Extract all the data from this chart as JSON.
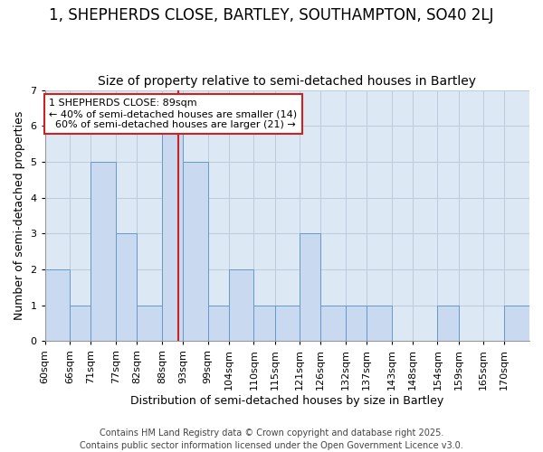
{
  "title": "1, SHEPHERDS CLOSE, BARTLEY, SOUTHAMPTON, SO40 2LJ",
  "subtitle": "Size of property relative to semi-detached houses in Bartley",
  "xlabel": "Distribution of semi-detached houses by size in Bartley",
  "ylabel": "Number of semi-detached properties",
  "bin_labels": [
    "60sqm",
    "66sqm",
    "71sqm",
    "77sqm",
    "82sqm",
    "88sqm",
    "93sqm",
    "99sqm",
    "104sqm",
    "110sqm",
    "115sqm",
    "121sqm",
    "126sqm",
    "132sqm",
    "137sqm",
    "143sqm",
    "148sqm",
    "154sqm",
    "159sqm",
    "165sqm",
    "170sqm"
  ],
  "bin_edges": [
    57,
    63,
    68,
    74,
    79,
    85,
    90,
    96,
    101,
    107,
    112,
    118,
    123,
    129,
    134,
    140,
    145,
    151,
    156,
    162,
    167,
    173
  ],
  "values": [
    2,
    1,
    5,
    3,
    1,
    6,
    5,
    1,
    2,
    1,
    1,
    3,
    1,
    1,
    1,
    0,
    0,
    1,
    0,
    0,
    1
  ],
  "bar_color": "#c9d9f0",
  "bar_edge_color": "#6699cc",
  "property_size": 89,
  "property_label": "1 SHEPHERDS CLOSE: 89sqm",
  "pct_smaller": 40,
  "count_smaller": 14,
  "pct_larger": 60,
  "count_larger": 21,
  "vline_color": "#cc2222",
  "annotation_box_color": "#ffffff",
  "annotation_box_edge": "#cc2222",
  "plot_bg_color": "#dce9f5",
  "fig_bg_color": "#ffffff",
  "grid_color": "#bbccdd",
  "ylim": [
    0,
    7
  ],
  "yticks": [
    0,
    1,
    2,
    3,
    4,
    5,
    6,
    7
  ],
  "footer": "Contains HM Land Registry data © Crown copyright and database right 2025.\nContains public sector information licensed under the Open Government Licence v3.0.",
  "title_fontsize": 12,
  "subtitle_fontsize": 10,
  "axis_label_fontsize": 9,
  "tick_fontsize": 8,
  "annotation_fontsize": 8,
  "footer_fontsize": 7
}
